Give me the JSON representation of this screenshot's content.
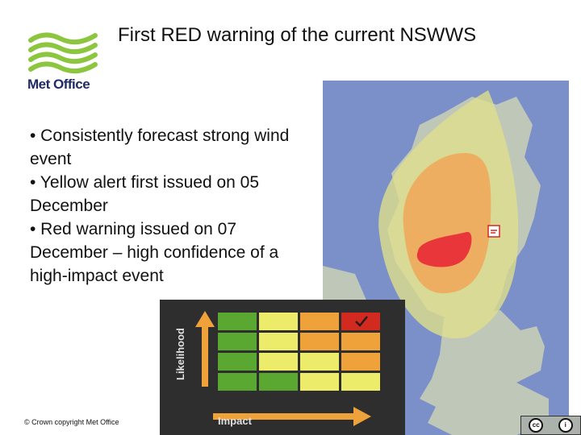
{
  "slide": {
    "title": "First RED warning of the current NSWWS",
    "bullets": [
      "• Consistently forecast strong wind event",
      "• Yellow alert first issued on 05 December",
      "• Red warning issued on 07 December – high confidence of a high-impact event"
    ]
  },
  "logo": {
    "text": "Met Office",
    "color": "#1f2a66",
    "wave_color": "#8cc63f"
  },
  "matrix": {
    "y_label": "Likelihood",
    "x_label": "Impact",
    "rows": [
      [
        "green",
        "yellow",
        "amber",
        "red"
      ],
      [
        "green",
        "yellow",
        "amber",
        "amber"
      ],
      [
        "green",
        "yellow",
        "yellow",
        "amber"
      ],
      [
        "green",
        "green",
        "yellow",
        "yellow"
      ]
    ],
    "colors": {
      "green": "#5aa832",
      "yellow": "#ecec6a",
      "amber": "#f0a23a",
      "red": "#d22a1e"
    },
    "selected_cell": {
      "row": 0,
      "col": 3
    }
  },
  "map": {
    "sea_color": "#7b8fc8",
    "land_color": "#bfc8b8",
    "yellow_color": "#dede8c",
    "amber_color": "#f0a85c",
    "red_color": "#e8363a",
    "warning_icons": [
      "wind-warning-icon"
    ]
  },
  "footer": {
    "copyright": "© Crown copyright   Met Office",
    "license_icons": [
      "cc-icon",
      "by-icon"
    ]
  }
}
